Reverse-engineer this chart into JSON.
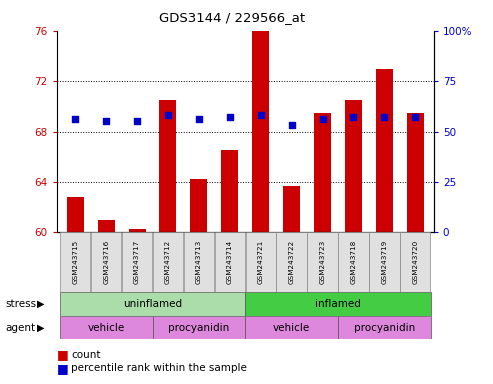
{
  "title": "GDS3144 / 229566_at",
  "samples": [
    "GSM243715",
    "GSM243716",
    "GSM243717",
    "GSM243712",
    "GSM243713",
    "GSM243714",
    "GSM243721",
    "GSM243722",
    "GSM243723",
    "GSM243718",
    "GSM243719",
    "GSM243720"
  ],
  "counts": [
    62.8,
    61.0,
    60.3,
    70.5,
    64.2,
    66.5,
    76.0,
    63.7,
    69.5,
    70.5,
    73.0,
    69.5
  ],
  "percentiles": [
    56,
    55,
    55,
    58,
    56,
    57,
    58,
    53,
    56,
    57,
    57,
    57
  ],
  "ylim_left": [
    60,
    76
  ],
  "ylim_right": [
    0,
    100
  ],
  "yticks_left": [
    60,
    64,
    68,
    72,
    76
  ],
  "ytick_labels_left": [
    "60",
    "64",
    "68",
    "72",
    "76"
  ],
  "yticks_right": [
    0,
    25,
    50,
    75,
    100
  ],
  "ytick_labels_right": [
    "0",
    "25",
    "50",
    "75",
    "100%"
  ],
  "bar_color": "#cc0000",
  "dot_color": "#0000cc",
  "stress_uninflamed_color": "#aaddaa",
  "stress_inflamed_color": "#44cc44",
  "agent_color": "#dd88dd",
  "stress_groups": [
    [
      "uninflamed",
      0,
      5
    ],
    [
      "inflamed",
      6,
      11
    ]
  ],
  "agent_groups": [
    [
      "vehicle",
      0,
      2
    ],
    [
      "procyanidin",
      3,
      5
    ],
    [
      "vehicle",
      6,
      8
    ],
    [
      "procyanidin",
      9,
      11
    ]
  ]
}
